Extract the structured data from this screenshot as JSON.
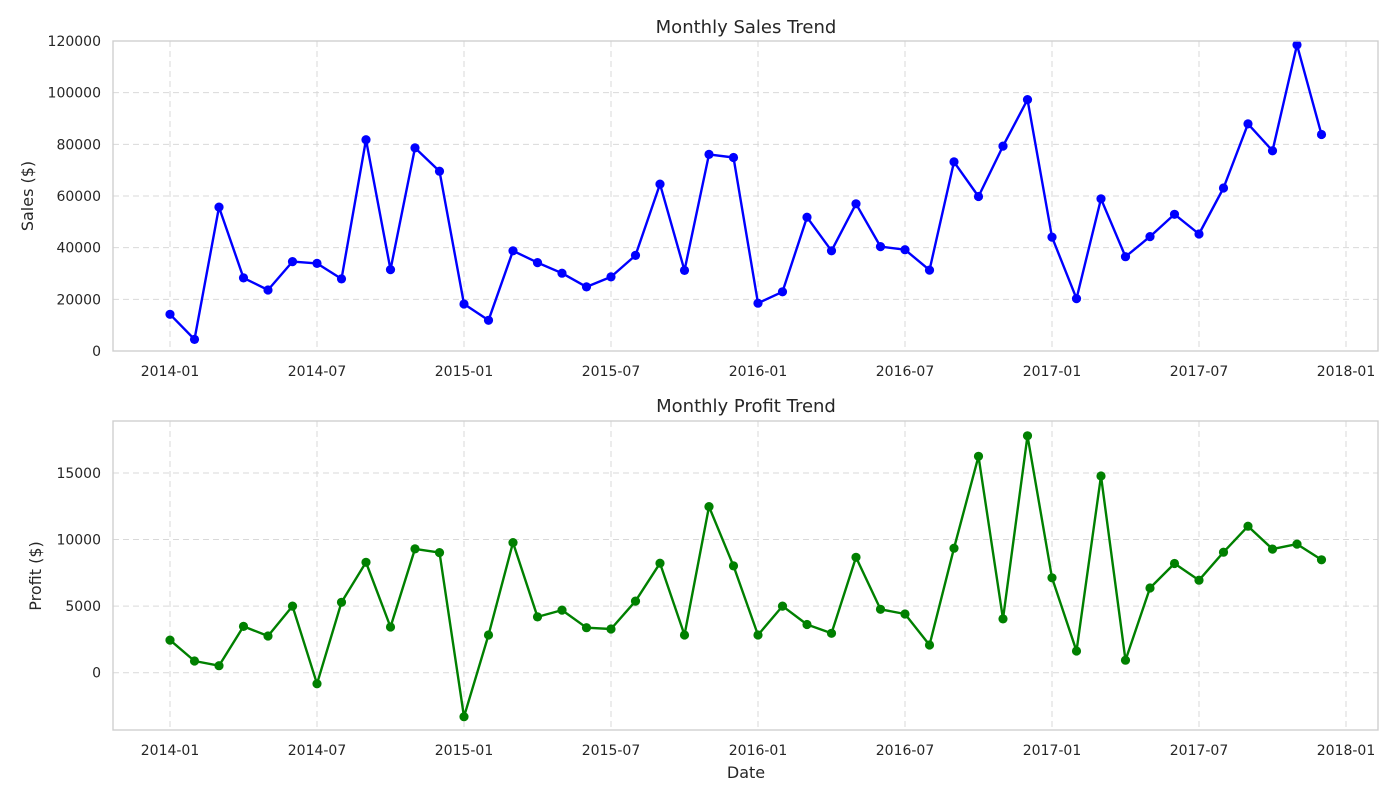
{
  "chart_data": [
    {
      "type": "line",
      "title": "Monthly Sales Trend",
      "xlabel": "",
      "ylabel": "Sales ($)",
      "ylim": [
        0,
        120000
      ],
      "yticks": [
        0,
        20000,
        40000,
        60000,
        80000,
        100000,
        120000
      ],
      "xticks": [
        "2014-01",
        "2014-07",
        "2015-01",
        "2015-07",
        "2016-01",
        "2016-07",
        "2017-01",
        "2017-07",
        "2018-01"
      ],
      "grid": true,
      "color": "#0000ff",
      "x": [
        "2014-01",
        "2014-02",
        "2014-03",
        "2014-04",
        "2014-05",
        "2014-06",
        "2014-07",
        "2014-08",
        "2014-09",
        "2014-10",
        "2014-11",
        "2014-12",
        "2015-01",
        "2015-02",
        "2015-03",
        "2015-04",
        "2015-05",
        "2015-06",
        "2015-07",
        "2015-08",
        "2015-09",
        "2015-10",
        "2015-11",
        "2015-12",
        "2016-01",
        "2016-02",
        "2016-03",
        "2016-04",
        "2016-05",
        "2016-06",
        "2016-07",
        "2016-08",
        "2016-09",
        "2016-10",
        "2016-11",
        "2016-12",
        "2017-01",
        "2017-02",
        "2017-03",
        "2017-04",
        "2017-05",
        "2017-06",
        "2017-07",
        "2017-08",
        "2017-09",
        "2017-10",
        "2017-11",
        "2017-12"
      ],
      "values": [
        14200,
        4500,
        55700,
        28300,
        23600,
        34600,
        33900,
        27900,
        81800,
        31500,
        78600,
        69600,
        18200,
        11900,
        38800,
        34200,
        30100,
        24800,
        28700,
        37000,
        64600,
        31200,
        76100,
        74900,
        18500,
        22900,
        51800,
        38800,
        57000,
        40400,
        39200,
        31300,
        73200,
        59800,
        79300,
        97300,
        44100,
        20300,
        58900,
        36500,
        44300,
        52900,
        45300,
        63100,
        87900,
        77500,
        118500,
        83800
      ]
    },
    {
      "type": "line",
      "title": "Monthly Profit Trend",
      "xlabel": "Date",
      "ylabel": "Profit ($)",
      "ylim": [
        -4300,
        18900
      ],
      "yticks": [
        0,
        5000,
        10000,
        15000
      ],
      "xticks": [
        "2014-01",
        "2014-07",
        "2015-01",
        "2015-07",
        "2016-01",
        "2016-07",
        "2017-01",
        "2017-07",
        "2018-01"
      ],
      "grid": true,
      "color": "#008000",
      "x": [
        "2014-01",
        "2014-02",
        "2014-03",
        "2014-04",
        "2014-05",
        "2014-06",
        "2014-07",
        "2014-08",
        "2014-09",
        "2014-10",
        "2014-11",
        "2014-12",
        "2015-01",
        "2015-02",
        "2015-03",
        "2015-04",
        "2015-05",
        "2015-06",
        "2015-07",
        "2015-08",
        "2015-09",
        "2015-10",
        "2015-11",
        "2015-12",
        "2016-01",
        "2016-02",
        "2016-03",
        "2016-04",
        "2016-05",
        "2016-06",
        "2016-07",
        "2016-08",
        "2016-09",
        "2016-10",
        "2016-11",
        "2016-12",
        "2017-01",
        "2017-02",
        "2017-03",
        "2017-04",
        "2017-05",
        "2017-06",
        "2017-07",
        "2017-08",
        "2017-09",
        "2017-10",
        "2017-11",
        "2017-12"
      ],
      "values": [
        2450,
        880,
        530,
        3480,
        2760,
        5000,
        -830,
        5290,
        8290,
        3430,
        9300,
        9020,
        -3300,
        2830,
        9770,
        4190,
        4700,
        3380,
        3280,
        5380,
        8220,
        2830,
        12470,
        8020,
        2830,
        5000,
        3620,
        2960,
        8670,
        4760,
        4410,
        2080,
        9350,
        16250,
        4040,
        17790,
        7130,
        1630,
        14770,
        940,
        6360,
        8200,
        6950,
        9050,
        11000,
        9280,
        9660,
        8480
      ]
    }
  ]
}
